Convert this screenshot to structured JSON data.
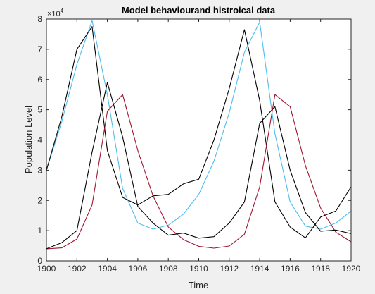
{
  "chart_data": {
    "type": "line",
    "title": "Model behaviourand histroical data",
    "xlabel": "Time",
    "ylabel": "Population Level",
    "exponent_label": "×10",
    "exponent_value": "4",
    "xlim": [
      1900,
      1920
    ],
    "ylim": [
      0,
      80000
    ],
    "xticks": [
      1900,
      1902,
      1904,
      1906,
      1908,
      1910,
      1912,
      1914,
      1916,
      1918,
      1920
    ],
    "yticks": [
      0,
      10000,
      20000,
      30000,
      40000,
      50000,
      60000,
      70000,
      80000
    ],
    "ytick_labels": [
      "0",
      "1",
      "2",
      "3",
      "4",
      "5",
      "6",
      "7",
      "8"
    ],
    "grid": false,
    "x": [
      1900,
      1901,
      1902,
      1903,
      1904,
      1905,
      1906,
      1907,
      1908,
      1909,
      1910,
      1911,
      1912,
      1913,
      1914,
      1915,
      1916,
      1917,
      1918,
      1919,
      1920
    ],
    "series": [
      {
        "color": "#4dbeee",
        "values": [
          30000,
          46000,
          65000,
          79500,
          55000,
          24000,
          12500,
          10500,
          11800,
          15500,
          22000,
          33000,
          49000,
          69000,
          79000,
          42000,
          19500,
          11500,
          10500,
          12500,
          16500
        ]
      },
      {
        "color": "#000000",
        "values": [
          30000,
          47500,
          70000,
          77500,
          36500,
          21000,
          18500,
          21500,
          22000,
          25500,
          27000,
          40000,
          57000,
          76500,
          53000,
          19500,
          11200,
          7600,
          14500,
          16500,
          24500
        ]
      },
      {
        "color": "#a2142f",
        "values": [
          4000,
          4300,
          7200,
          18500,
          49500,
          55000,
          36500,
          21500,
          11200,
          7000,
          4800,
          4200,
          4900,
          8800,
          24500,
          55000,
          51000,
          31500,
          17500,
          9500,
          6300
        ]
      },
      {
        "color": "#000000",
        "values": [
          4000,
          6000,
          10000,
          36000,
          59000,
          41000,
          18000,
          12500,
          8500,
          9200,
          7500,
          8000,
          12500,
          19500,
          45500,
          51000,
          30000,
          16000,
          9800,
          10200,
          9000
        ]
      }
    ]
  }
}
